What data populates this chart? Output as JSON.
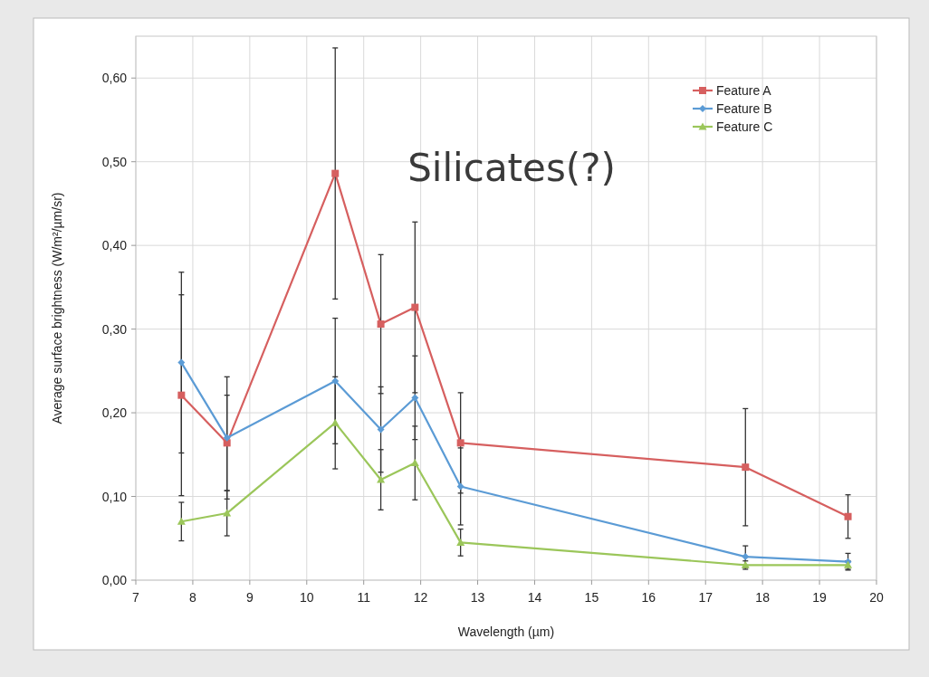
{
  "chart_data": {
    "type": "line",
    "xlabel": "Wavelength (µm)",
    "ylabel": "Average surface brightness (W/m²/µm/sr)",
    "annotations": [
      "Silicates(?)"
    ],
    "x": [
      7.8,
      8.6,
      10.5,
      11.3,
      11.9,
      12.7,
      17.7,
      19.5
    ],
    "series": [
      {
        "name": "Feature A",
        "color": "#d65f5f",
        "marker": "square",
        "values": [
          0.221,
          0.164,
          0.486,
          0.306,
          0.326,
          0.164,
          0.135,
          0.076
        ],
        "errors": [
          0.12,
          0.057,
          0.15,
          0.083,
          0.102,
          0.06,
          0.07,
          0.026
        ]
      },
      {
        "name": "Feature B",
        "color": "#5b9bd5",
        "marker": "diamond",
        "values": [
          0.26,
          0.17,
          0.238,
          0.18,
          0.218,
          0.112,
          0.028,
          0.022
        ],
        "errors": [
          0.108,
          0.073,
          0.075,
          0.051,
          0.05,
          0.046,
          0.013,
          0.01
        ]
      },
      {
        "name": "Feature C",
        "color": "#9bc65a",
        "marker": "triangle",
        "values": [
          0.07,
          0.08,
          0.188,
          0.12,
          0.14,
          0.045,
          0.018,
          0.018
        ],
        "errors": [
          0.023,
          0.027,
          0.055,
          0.036,
          0.044,
          0.016,
          0.005,
          0.005
        ]
      }
    ],
    "xlim": [
      7,
      20
    ],
    "xticks": [
      7,
      8,
      9,
      10,
      11,
      12,
      13,
      14,
      15,
      16,
      17,
      18,
      19,
      20
    ],
    "ylim": [
      0,
      0.65
    ],
    "yticks": [
      {
        "value": 0,
        "label": "0,00"
      },
      {
        "value": 0.1,
        "label": "0,10"
      },
      {
        "value": 0.2,
        "label": "0,20"
      },
      {
        "value": 0.3,
        "label": "0,30"
      },
      {
        "value": 0.4,
        "label": "0,40"
      },
      {
        "value": 0.5,
        "label": "0,50"
      },
      {
        "value": 0.6,
        "label": "0,60"
      }
    ],
    "grid": true,
    "legend": "top right",
    "line_style": "solid"
  }
}
